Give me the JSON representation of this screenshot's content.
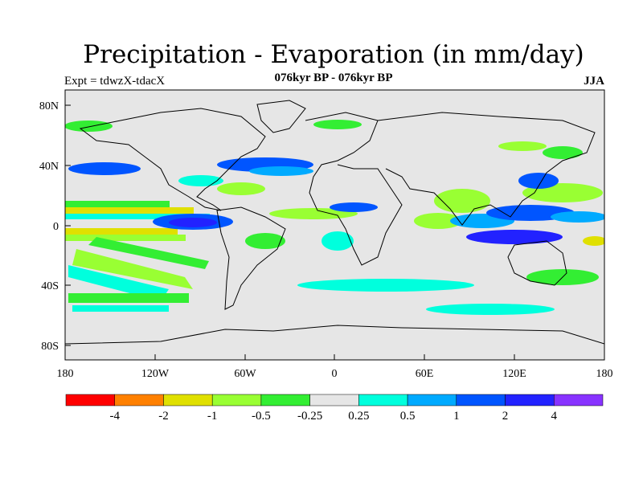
{
  "title": "Precipitation - Evaporation (in mm/day)",
  "subtitle": "076kyr BP - 076kyr BP",
  "left_label": "Expt = tdwzX-tdacX",
  "right_label": "JJA",
  "axes": {
    "x_ticks": [
      "180",
      "120W",
      "60W",
      "0",
      "60E",
      "120E",
      "180"
    ],
    "y_ticks": [
      "80N",
      "40N",
      "0",
      "40S",
      "80S"
    ]
  },
  "colorbar": {
    "colors": [
      "#ff0000",
      "#ff8000",
      "#e0e000",
      "#99ff33",
      "#33ee33",
      "#e6e6e6",
      "#00ffdd",
      "#00aaff",
      "#0055ff",
      "#2222ff",
      "#8833ff"
    ],
    "labels": [
      "-4",
      "-2",
      "-1",
      "-0.5",
      "-0.25",
      "0.25",
      "0.5",
      "1",
      "2",
      "4"
    ]
  },
  "map": {
    "background": "#e6e6e6",
    "features": [
      {
        "name": "tropical-pacific-band",
        "color": "#e0e000"
      },
      {
        "name": "tropical-pacific-band-green",
        "color": "#33ee33"
      },
      {
        "name": "east-pacific-blue",
        "color": "#0055ff"
      },
      {
        "name": "east-pacific-deep",
        "color": "#2222ff"
      },
      {
        "name": "indian-monsoon",
        "color": "#99ff33"
      },
      {
        "name": "maritime-continent-blue",
        "color": "#2222ff"
      },
      {
        "name": "west-pacific-blue",
        "color": "#0055ff"
      },
      {
        "name": "southern-ocean-green",
        "color": "#33ee33"
      },
      {
        "name": "southern-ocean-cyan",
        "color": "#00ffdd"
      }
    ]
  }
}
